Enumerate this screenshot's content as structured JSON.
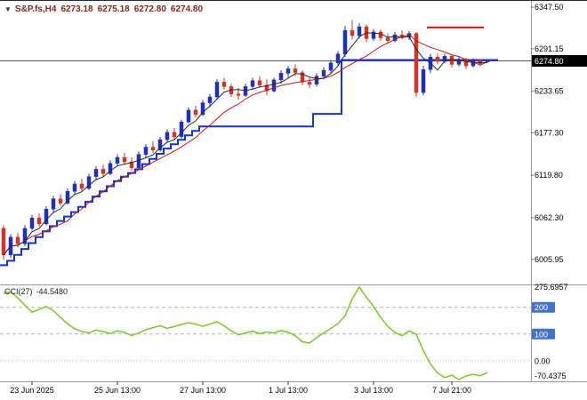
{
  "header": {
    "dropdown_icon": "▼",
    "symbol": "S&P.fs,H4",
    "open": "6273.18",
    "high": "6275.18",
    "low": "6272.80",
    "close": "6274.80"
  },
  "indicator": {
    "label": "CCI(27)",
    "value": "-44.5480"
  },
  "price_axis": {
    "ticks": [
      {
        "label": "6347.50",
        "value": 6347.5
      },
      {
        "label": "6291.15",
        "value": 6291.15
      },
      {
        "label": "6233.65",
        "value": 6233.65
      },
      {
        "label": "6177.30",
        "value": 6177.3
      },
      {
        "label": "6119.80",
        "value": 6119.8
      },
      {
        "label": "6062.30",
        "value": 6062.3
      },
      {
        "label": "6005.95",
        "value": 6005.95
      }
    ],
    "current": {
      "label": "6274.80",
      "value": 6274.8
    }
  },
  "cci_axis": {
    "scale_max": {
      "label": "275.6957",
      "value": 275.6957
    },
    "levels": [
      {
        "label": "200",
        "value": 200,
        "badge": true
      },
      {
        "label": "100",
        "value": 100,
        "badge": true
      },
      {
        "label": "0.00",
        "value": 0,
        "badge": false
      }
    ],
    "scale_min": {
      "label": "-70.4375",
      "value": -70.4375
    }
  },
  "time_axis": {
    "labels": [
      {
        "text": "23 Jun 2025",
        "bar": 4
      },
      {
        "text": "25 Jun 13:00",
        "bar": 16
      },
      {
        "text": "27 Jun 13:00",
        "bar": 28
      },
      {
        "text": "1 Jul 13:00",
        "bar": 40
      },
      {
        "text": "3 Jul 13:00",
        "bar": 52
      },
      {
        "text": "7 Jul 21:00",
        "bar": 63
      }
    ]
  },
  "colors": {
    "header_text": "#8b2418",
    "bull": "#2031b4",
    "bear": "#d23428",
    "trail_line": "#1133dd",
    "ma_fast": "#2b2b2b",
    "ma_slow": "#cc1111",
    "cci_line": "#77cc22",
    "level_badge": "#4472c4",
    "resistance_line": "#ff0000",
    "bid_line": "#555555",
    "separator": "#9a9a9a",
    "grid_dash": "#b5b5b5"
  },
  "chart_data": {
    "type": "candlestick",
    "title": "S&P.fs,H4",
    "ylim_price": [
      5972,
      6356
    ],
    "ylim_cci": [
      -70.4375,
      275.6957
    ],
    "candles": [
      [
        6048,
        6052,
        6005.5,
        6012
      ],
      [
        6012,
        6040,
        6008,
        6036
      ],
      [
        6036,
        6042,
        6022,
        6027
      ],
      [
        6027,
        6052,
        6024,
        6048
      ],
      [
        6048,
        6066,
        6045,
        6062
      ],
      [
        6062,
        6068,
        6050,
        6054
      ],
      [
        6054,
        6078,
        6052,
        6074
      ],
      [
        6074,
        6092,
        6070,
        6088
      ],
      [
        6088,
        6094,
        6078,
        6082
      ],
      [
        6082,
        6102,
        6080,
        6098
      ],
      [
        6098,
        6112,
        6094,
        6108
      ],
      [
        6108,
        6115,
        6098,
        6102
      ],
      [
        6102,
        6122,
        6100,
        6118
      ],
      [
        6118,
        6132,
        6114,
        6128
      ],
      [
        6128,
        6134,
        6118,
        6122
      ],
      [
        6122,
        6140,
        6120,
        6136
      ],
      [
        6136,
        6148,
        6132,
        6144
      ],
      [
        6144,
        6150,
        6134,
        6138
      ],
      [
        6138,
        6144,
        6126,
        6130
      ],
      [
        6130,
        6152,
        6128,
        6148
      ],
      [
        6148,
        6162,
        6144,
        6158
      ],
      [
        6158,
        6166,
        6150,
        6154
      ],
      [
        6154,
        6172,
        6152,
        6168
      ],
      [
        6168,
        6182,
        6164,
        6178
      ],
      [
        6178,
        6184,
        6168,
        6172
      ],
      [
        6172,
        6195,
        6170,
        6192
      ],
      [
        6192,
        6212,
        6190,
        6208
      ],
      [
        6208,
        6214,
        6198,
        6202
      ],
      [
        6202,
        6222,
        6200,
        6218
      ],
      [
        6218,
        6230,
        6212,
        6226
      ],
      [
        6226,
        6250,
        6224,
        6246
      ],
      [
        6246,
        6252,
        6236,
        6240
      ],
      [
        6240,
        6244,
        6226,
        6230
      ],
      [
        6230,
        6238,
        6222,
        6228
      ],
      [
        6228,
        6244,
        6226,
        6240
      ],
      [
        6240,
        6252,
        6236,
        6248
      ],
      [
        6248,
        6254,
        6238,
        6242
      ],
      [
        6242,
        6250,
        6228,
        6234
      ],
      [
        6234,
        6252,
        6232,
        6249
      ],
      [
        6249,
        6262,
        6244,
        6258
      ],
      [
        6258,
        6268,
        6252,
        6264
      ],
      [
        6264,
        6270,
        6254,
        6259
      ],
      [
        6259,
        6262,
        6242,
        6246
      ],
      [
        6246,
        6252,
        6238,
        6243
      ],
      [
        6243,
        6258,
        6240,
        6254
      ],
      [
        6254,
        6266,
        6250,
        6262
      ],
      [
        6262,
        6276,
        6258,
        6272
      ],
      [
        6272,
        6288,
        6268,
        6284
      ],
      [
        6284,
        6322,
        6280,
        6316
      ],
      [
        6316,
        6330,
        6304,
        6309
      ],
      [
        6309,
        6326,
        6305,
        6321
      ],
      [
        6321,
        6324,
        6300,
        6305
      ],
      [
        6305,
        6318,
        6302,
        6314
      ],
      [
        6314,
        6317,
        6302,
        6306
      ],
      [
        6306,
        6312,
        6298,
        6302
      ],
      [
        6302,
        6314,
        6300,
        6310
      ],
      [
        6310,
        6316,
        6304,
        6307
      ],
      [
        6307,
        6315,
        6303,
        6312
      ],
      [
        6312,
        6314,
        6226,
        6232
      ],
      [
        6232,
        6268,
        6228,
        6263
      ],
      [
        6263,
        6284,
        6258,
        6280
      ],
      [
        6280,
        6285,
        6270,
        6274
      ],
      [
        6274,
        6284,
        6272,
        6281
      ],
      [
        6281,
        6283,
        6266,
        6270
      ],
      [
        6270,
        6280,
        6267,
        6277
      ],
      [
        6277,
        6279,
        6264,
        6268
      ],
      [
        6268,
        6278,
        6266,
        6275
      ],
      [
        6275,
        6277,
        6268,
        6271
      ],
      [
        6273.18,
        6275.18,
        6272.8,
        6274.8
      ]
    ],
    "trail": [
      5998,
      6004,
      6012,
      6020,
      6028,
      6036,
      6044,
      6051,
      6058,
      6064,
      6070,
      6077,
      6084,
      6091,
      6098,
      6105,
      6112,
      6118,
      6123,
      6128,
      6135,
      6142,
      6149,
      6156,
      6162,
      6168,
      6174,
      6180,
      6186,
      6186,
      6186,
      6186,
      6186,
      6186,
      6186,
      6186,
      6186,
      6186,
      6186,
      6186,
      6186,
      6186,
      6186,
      6186,
      6203,
      6203,
      6203,
      6203,
      6276,
      6276,
      6276,
      6276,
      6276,
      6276,
      6276,
      6276,
      6276,
      6276,
      6276,
      6276,
      6276,
      6276,
      6276,
      6276,
      6276,
      6276,
      6276,
      6276,
      6276
    ],
    "cci": [
      252,
      258,
      235,
      208,
      182,
      192,
      203,
      188,
      162,
      138,
      120,
      110,
      104,
      115,
      109,
      102,
      112,
      106,
      94,
      104,
      116,
      124,
      131,
      122,
      128,
      136,
      142,
      137,
      129,
      137,
      146,
      131,
      112,
      97,
      104,
      111,
      101,
      108,
      104,
      113,
      107,
      94,
      71,
      66,
      87,
      104,
      121,
      139,
      168,
      232,
      275.6957,
      238,
      203,
      163,
      128,
      106,
      94,
      112,
      99,
      38,
      -12,
      -46,
      -63,
      -54,
      -70.4375,
      -57,
      -51,
      -56,
      -44.548
    ],
    "overlays": {
      "resistance": {
        "price": 6320,
        "from_bar": 60,
        "to_bar": 67
      },
      "bid_line": {
        "price": 6274.8
      }
    },
    "ma_fast_period": 4,
    "ma_slow_period": 10
  }
}
